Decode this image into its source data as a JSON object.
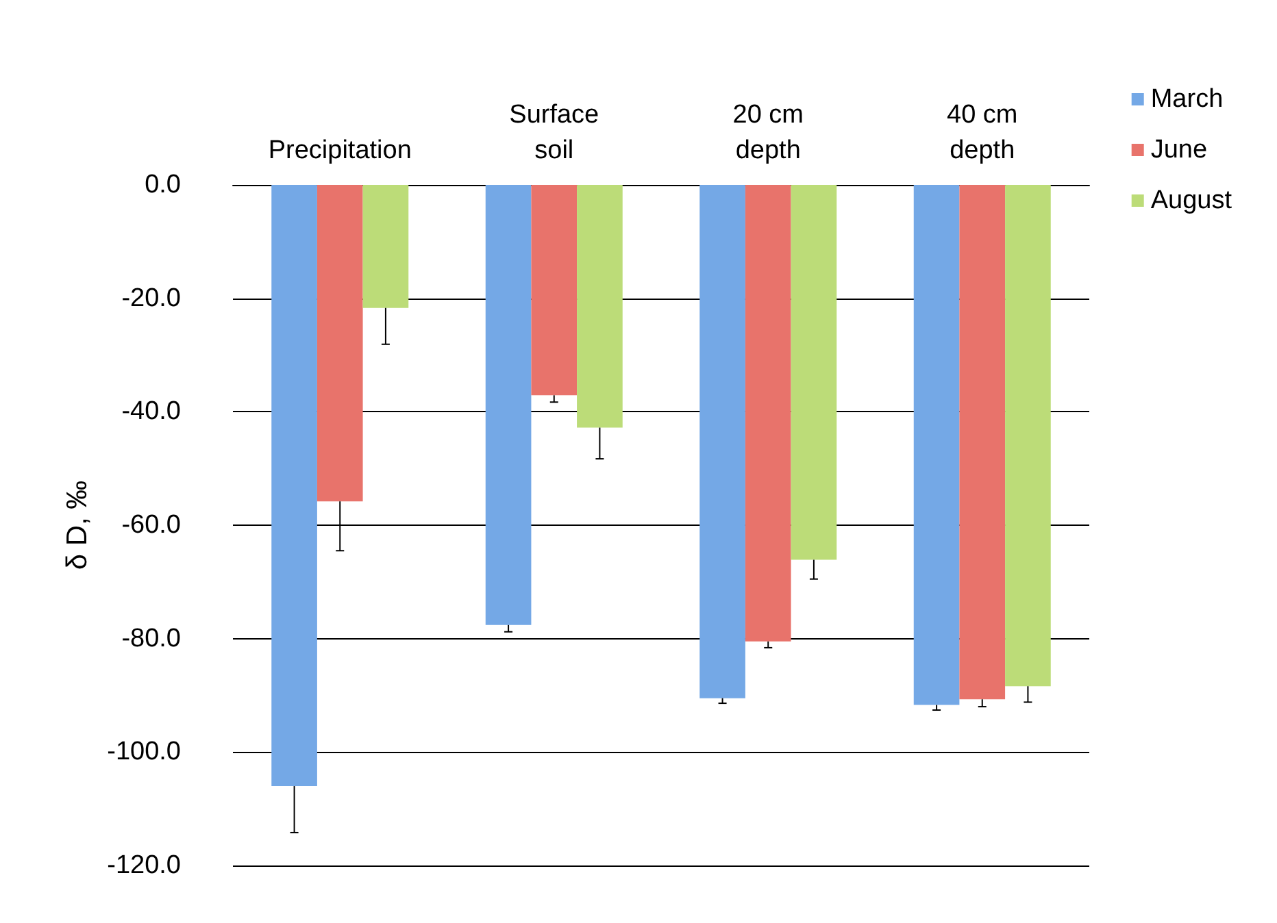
{
  "chart_data": {
    "type": "bar",
    "ylabel": "δ D, ‰",
    "categories": [
      "Precipitation",
      "Surface soil",
      "20 cm depth",
      "40 cm depth"
    ],
    "series": [
      {
        "name": "March",
        "color": "#74a8e6",
        "values": [
          -106.0,
          -77.6,
          -90.5,
          -91.7
        ],
        "errors": [
          [
            -114.2,
            -106.0
          ],
          [
            -78.8,
            -77.6
          ],
          [
            -91.4,
            -90.5
          ],
          [
            -92.6,
            -91.7
          ]
        ]
      },
      {
        "name": "June",
        "color": "#e8736b",
        "values": [
          -55.8,
          -37.1,
          -80.5,
          -90.7
        ],
        "errors": [
          [
            -64.5,
            -55.8
          ],
          [
            -38.3,
            -37.1
          ],
          [
            -81.6,
            -80.5
          ],
          [
            -92.0,
            -90.7
          ]
        ]
      },
      {
        "name": "August",
        "color": "#bcdc78",
        "values": [
          -21.7,
          -42.8,
          -66.1,
          -88.4
        ],
        "errors": [
          [
            -28.1,
            -21.7
          ],
          [
            -48.3,
            -42.8
          ],
          [
            -69.5,
            -66.1
          ],
          [
            -91.2,
            -88.4
          ]
        ]
      }
    ],
    "ylim": [
      -120,
      0
    ],
    "yticks": [
      {
        "value": -120,
        "label": "-120.0"
      },
      {
        "value": -100,
        "label": "-100.0"
      },
      {
        "value": -80,
        "label": "-80.0"
      },
      {
        "value": -60,
        "label": "-60.0"
      },
      {
        "value": -40,
        "label": "-40.0"
      },
      {
        "value": -20,
        "label": "-20.0"
      },
      {
        "value": 0,
        "label": "0.0"
      }
    ],
    "grid": "y",
    "legend": "top right"
  }
}
